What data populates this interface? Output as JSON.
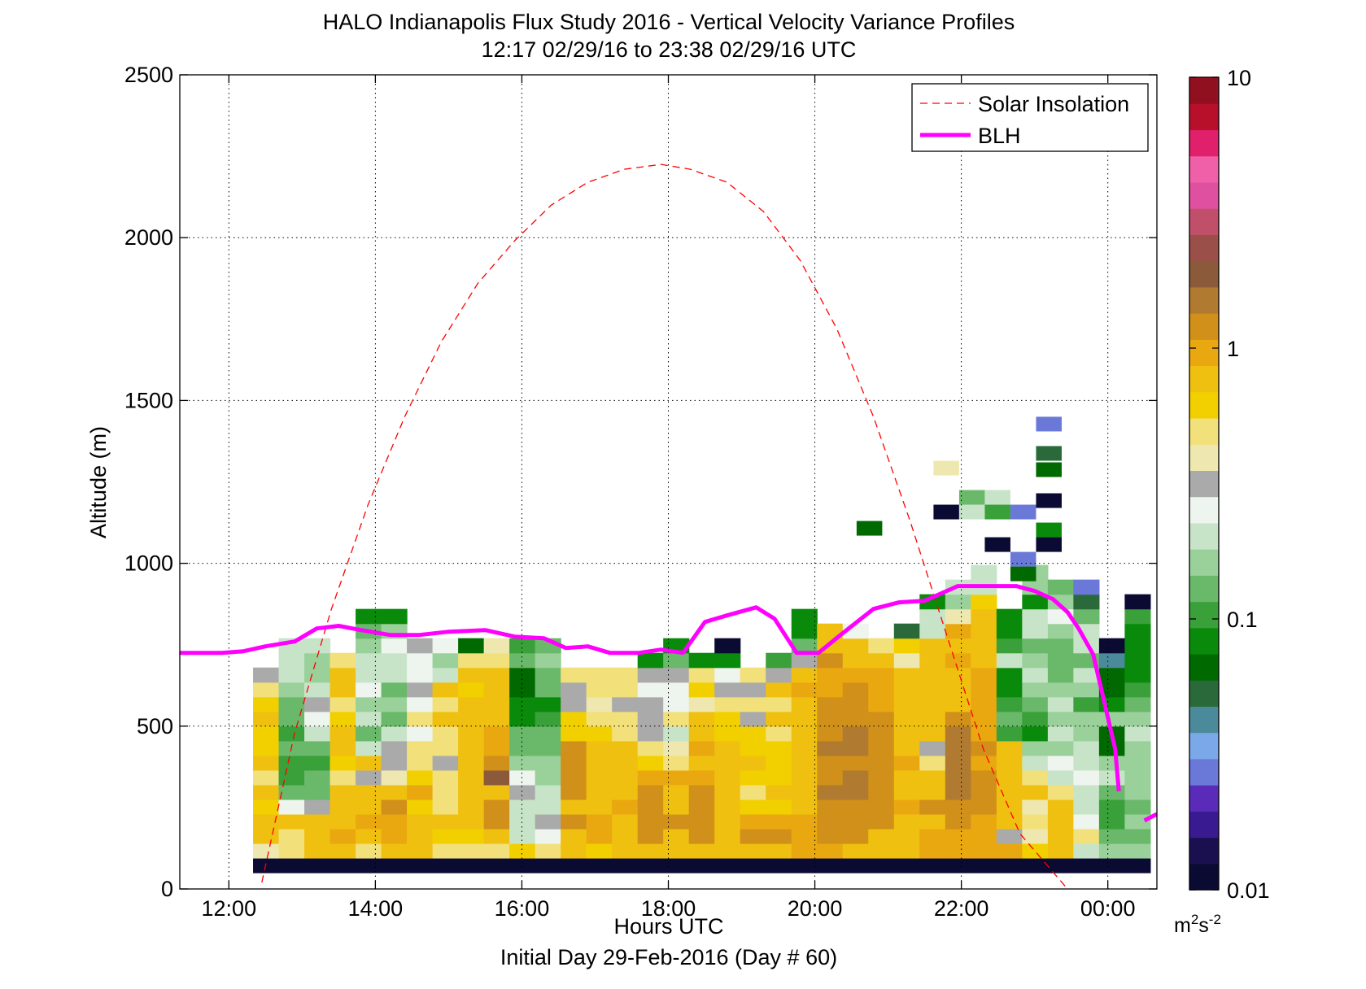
{
  "figure": {
    "title_line1": "HALO Indianapolis Flux Study 2016 - Vertical Velocity Variance Profiles",
    "title_line2": "12:17 02/29/16 to 23:38 02/29/16  UTC",
    "xlabel": "Hours UTC",
    "xlabel2": "Initial Day 29-Feb-2016 (Day # 60)",
    "ylabel": "Altitude (m)",
    "colorbar_unit_base": "m",
    "colorbar_unit_sup1": "2",
    "colorbar_unit_mid": "s",
    "colorbar_unit_sup2": "-2"
  },
  "chart_data": {
    "type": "heatmap",
    "x_unit": "hours UTC",
    "y_unit": "m",
    "xlim": [
      11.33,
      24.67
    ],
    "ylim": [
      0,
      2500
    ],
    "xticks": [
      12,
      14,
      16,
      18,
      20,
      22,
      24
    ],
    "xtick_labels": [
      "12:00",
      "14:00",
      "16:00",
      "18:00",
      "20:00",
      "22:00",
      "00:00"
    ],
    "yticks": [
      0,
      500,
      1000,
      1500,
      2000,
      2500
    ],
    "ytick_labels": [
      "0",
      "500",
      "1000",
      "1500",
      "2000",
      "2500"
    ],
    "grid": true,
    "legend_position": "top-right",
    "legend": [
      "Solar Insolation",
      "BLH"
    ],
    "colorbar": {
      "scale": "log",
      "range": [
        0.01,
        10
      ],
      "ticks": [
        0.01,
        0.1,
        1,
        10
      ],
      "tick_labels": [
        "0.01",
        "0.1",
        "1",
        "10"
      ],
      "colors": [
        "#0a0a33",
        "#1a1050",
        "#3a1a90",
        "#5a2ab8",
        "#6a78d8",
        "#7aa8e8",
        "#4a8a9a",
        "#2a6a3a",
        "#006a00",
        "#0a8a0a",
        "#3aa03a",
        "#6ab86a",
        "#9ad09a",
        "#c8e4c8",
        "#eef4ee",
        "#aaaaaa",
        "#eee8b0",
        "#f2e07a",
        "#f2d000",
        "#f0c010",
        "#eaa810",
        "#d0901a",
        "#b07a30",
        "#8a5a3a",
        "#9a5048",
        "#c0506a",
        "#e050a0",
        "#f060a8",
        "#e0206a",
        "#b8102a",
        "#901020"
      ]
    },
    "series": [
      {
        "name": "Solar Insolation",
        "style": "dashed",
        "color": "#ff0000",
        "x": [
          12.45,
          12.9,
          13.4,
          13.9,
          14.4,
          14.9,
          15.4,
          15.9,
          16.4,
          16.9,
          17.4,
          17.9,
          18.3,
          18.8,
          19.3,
          19.8,
          20.3,
          20.8,
          21.3,
          21.8,
          22.3,
          22.8,
          23.45
        ],
        "y": [
          20,
          480,
          860,
          1180,
          1450,
          1680,
          1860,
          1990,
          2100,
          2170,
          2210,
          2225,
          2210,
          2170,
          2080,
          1930,
          1720,
          1450,
          1130,
          780,
          430,
          170,
          0
        ]
      },
      {
        "name": "BLH",
        "style": "solid",
        "color": "#ff00ff",
        "x": [
          11.33,
          11.6,
          11.9,
          12.2,
          12.5,
          12.9,
          13.2,
          13.5,
          13.8,
          14.2,
          14.6,
          15.0,
          15.5,
          15.9,
          16.3,
          16.6,
          16.9,
          17.2,
          17.6,
          17.9,
          18.2,
          18.5,
          18.8,
          19.2,
          19.45,
          19.75,
          20.05,
          20.35,
          20.8,
          21.15,
          21.5,
          21.95,
          22.45,
          22.75,
          23.0,
          23.25,
          23.45,
          23.6,
          23.8,
          24.1,
          24.15,
          24.5,
          24.67
        ],
        "y": [
          725,
          725,
          725,
          730,
          745,
          760,
          800,
          808,
          795,
          780,
          780,
          790,
          795,
          775,
          770,
          740,
          745,
          725,
          725,
          735,
          725,
          820,
          840,
          865,
          830,
          725,
          725,
          780,
          860,
          880,
          885,
          930,
          930,
          930,
          915,
          890,
          850,
          800,
          720,
          430,
          300,
          210,
          230
        ],
        "gap_after_x": 24.15
      }
    ],
    "heatmap": {
      "x_start": 12.33,
      "dx": 0.35,
      "y_start": 50,
      "dy": 45,
      "note": "columns[i] lists variance values (m^2 s^-2) from the lowest bin upward; null = no return",
      "columns": [
        [
          0.01,
          0.4,
          0.8,
          0.7,
          0.6,
          0.8,
          0.5,
          0.7,
          0.6,
          0.6,
          0.7,
          0.6,
          0.45,
          0.35
        ],
        [
          0.01,
          0.45,
          0.5,
          0.7,
          0.25,
          0.12,
          0.11,
          0.1,
          0.13,
          0.11,
          0.12,
          0.12,
          0.15,
          0.2,
          0.2,
          0.2
        ],
        [
          0.01,
          0.8,
          0.7,
          0.75,
          0.31,
          0.14,
          0.13,
          0.11,
          0.12,
          0.2,
          0.25,
          0.3,
          0.2,
          0.18,
          0.16,
          0.2
        ],
        [
          0.01,
          0.7,
          0.9,
          0.7,
          0.75,
          0.8,
          0.55,
          0.6,
          0.7,
          0.75,
          0.6,
          0.5,
          0.8,
          0.8,
          0.5
        ],
        [
          0.01,
          0.45,
          0.8,
          0.9,
          0.75,
          0.8,
          0.35,
          0.7,
          0.22,
          0.14,
          0.2,
          0.18,
          0.25,
          0.2,
          0.22,
          0.16,
          0.12,
          0.08
        ],
        [
          0.01,
          0.7,
          0.9,
          0.9,
          1.2,
          0.7,
          0.4,
          0.3,
          0.35,
          0.2,
          0.12,
          0.15,
          0.12,
          0.2,
          0.22,
          0.25,
          0.18,
          0.09
        ],
        [
          0.01,
          0.8,
          0.75,
          0.7,
          0.65,
          0.9,
          0.65,
          0.5,
          0.45,
          0.28,
          0.45,
          0.25,
          0.3,
          0.25,
          0.28,
          0.3
        ],
        [
          0.01,
          0.55,
          0.6,
          0.7,
          0.5,
          0.55,
          0.45,
          0.3,
          0.5,
          0.5,
          0.7,
          0.5,
          0.8,
          0.22,
          0.18,
          0.25
        ],
        [
          0.01,
          0.5,
          0.65,
          0.75,
          0.8,
          0.75,
          0.8,
          0.7,
          0.75,
          0.8,
          0.7,
          0.7,
          0.6,
          0.7,
          0.45,
          0.07
        ],
        [
          0.01,
          0.5,
          0.75,
          1.3,
          1.1,
          0.7,
          1.7,
          1.1,
          0.9,
          0.9,
          0.7,
          0.8,
          0.8,
          0.75,
          0.5,
          0.4
        ],
        [
          0.01,
          0.6,
          0.22,
          0.21,
          0.2,
          0.3,
          0.25,
          0.15,
          0.14,
          0.12,
          0.09,
          0.08,
          0.06,
          0.07,
          0.13,
          0.1
        ],
        [
          0.01,
          0.55,
          0.28,
          0.3,
          0.2,
          0.2,
          0.17,
          0.15,
          0.13,
          0.12,
          0.1,
          0.08,
          0.12,
          0.12,
          0.15,
          0.14
        ],
        [
          0.01,
          0.7,
          0.8,
          1.2,
          0.8,
          1.3,
          1.2,
          1.1,
          1.2,
          0.6,
          0.6,
          0.3,
          0.35,
          0.5
        ],
        [
          0.01,
          0.6,
          0.9,
          0.9,
          0.7,
          0.8,
          0.8,
          0.7,
          0.8,
          0.6,
          0.5,
          0.4,
          0.45,
          0.5
        ],
        [
          0.01,
          0.7,
          0.75,
          0.8,
          0.9,
          0.8,
          0.8,
          0.7,
          0.7,
          0.55,
          0.5,
          0.32,
          0.55,
          0.5
        ],
        [
          0.01,
          0.8,
          1.3,
          1.1,
          1.2,
          1.3,
          0.9,
          0.6,
          0.5,
          0.31,
          0.31,
          0.3,
          0.28,
          0.3,
          0.09
        ],
        [
          0.01,
          0.7,
          0.8,
          1.1,
          0.8,
          0.75,
          0.9,
          0.5,
          0.4,
          0.2,
          0.45,
          0.25,
          0.25,
          0.3,
          0.12,
          0.08
        ],
        [
          0.01,
          0.8,
          1.2,
          1.2,
          1.1,
          1.2,
          0.9,
          0.8,
          0.9,
          0.8,
          0.7,
          0.4,
          0.6,
          0.45,
          0.09
        ],
        [
          0.01,
          0.75,
          0.7,
          0.75,
          0.8,
          0.7,
          0.8,
          0.75,
          0.7,
          0.6,
          0.65,
          0.5,
          0.35,
          0.25,
          0.08,
          0.01
        ],
        [
          0.01,
          0.7,
          1.1,
          0.9,
          0.6,
          0.5,
          0.6,
          0.7,
          0.6,
          0.6,
          0.31,
          0.5,
          0.35,
          0.5
        ],
        [
          0.01,
          0.8,
          1.1,
          0.9,
          0.6,
          0.7,
          0.6,
          0.6,
          0.6,
          0.5,
          0.75,
          0.45,
          0.75,
          0.31,
          0.1
        ],
        [
          0.01,
          0.9,
          0.9,
          0.9,
          0.8,
          0.7,
          0.7,
          0.7,
          0.8,
          0.7,
          0.8,
          0.8,
          0.9,
          0.8,
          0.3,
          0.14,
          0.09,
          0.08
        ],
        [
          0.01,
          0.9,
          1.2,
          1.3,
          1.2,
          1.4,
          1.2,
          1.3,
          1.4,
          1.3,
          1.1,
          1.2,
          1.0,
          1.0,
          1.1,
          0.8,
          0.7
        ],
        [
          0.01,
          0.8,
          1.3,
          1.2,
          1.3,
          1.6,
          1.4,
          1.3,
          1.6,
          1.4,
          1.2,
          1.2,
          1.1,
          1.0,
          0.75,
          0.8,
          0.25
        ],
        [
          0.01,
          0.8,
          0.8,
          1.2,
          1.1,
          1.2,
          1.3,
          1.2,
          1.3,
          1.2,
          1.1,
          1.0,
          1.0,
          0.9,
          0.7,
          0.5
        ],
        [
          0.01,
          0.8,
          0.8,
          0.8,
          0.9,
          0.8,
          0.7,
          0.9,
          0.8,
          0.8,
          0.8,
          0.7,
          0.8,
          0.8,
          0.4,
          0.6,
          0.05
        ],
        [
          0.01,
          0.9,
          1.0,
          0.8,
          1.1,
          0.7,
          0.8,
          0.5,
          0.3,
          0.7,
          0.8,
          0.7,
          0.8,
          0.7,
          0.8,
          0.7,
          0.2,
          0.2,
          0.08
        ],
        [
          0.01,
          0.9,
          1.0,
          1.1,
          1.3,
          1.6,
          1.6,
          1.4,
          1.6,
          1.4,
          1.2,
          0.8,
          0.8,
          0.8,
          0.9,
          0.7,
          0.9,
          0.4,
          0.15,
          0.2
        ],
        [
          0.01,
          0.9,
          1.0,
          0.9,
          1.2,
          1.1,
          1.1,
          1.0,
          1.1,
          1.0,
          0.9,
          1.0,
          0.9,
          0.9,
          0.8,
          0.75,
          0.8,
          0.7,
          0.6,
          0.22,
          0.2
        ],
        [
          0.01,
          0.9,
          0.33,
          0.7,
          0.8,
          0.7,
          0.8,
          0.75,
          0.7,
          0.1,
          0.12,
          0.1,
          0.09,
          0.08,
          0.2,
          0.1,
          0.08,
          0.09
        ],
        [
          0.01,
          0.6,
          0.4,
          0.5,
          0.4,
          0.7,
          0.45,
          0.2,
          0.15,
          0.08,
          0.1,
          0.12,
          0.16,
          0.2,
          0.18,
          0.14,
          0.2,
          0.2,
          0.08,
          0.15,
          0.17
        ],
        [
          0.01,
          0.8,
          0.8,
          0.7,
          0.75,
          0.45,
          0.21,
          0.23,
          0.18,
          0.2,
          0.15,
          0.2,
          0.18,
          0.13,
          0.12,
          0.12,
          0.15,
          0.23,
          0.15,
          0.13
        ],
        [
          0.01,
          0.21,
          0.45,
          0.28,
          0.22,
          0.21,
          0.23,
          0.21,
          0.2,
          0.18,
          0.15,
          0.1,
          0.17,
          0.2,
          0.13,
          0.21,
          0.19,
          0.13,
          0.05,
          0.03
        ],
        [
          0.01,
          0.15,
          0.13,
          0.1,
          0.11,
          0.14,
          0.2,
          0.15,
          0.07,
          0.07,
          0.15,
          0.08,
          0.07,
          0.06,
          0.04,
          0.01
        ],
        [
          0.01,
          0.15,
          0.12,
          0.15,
          0.12,
          0.18,
          0.18,
          0.15,
          0.18,
          0.2,
          0.15,
          0.14,
          0.1,
          0.09,
          0.08,
          0.08,
          0.09,
          0.1,
          0.01
        ]
      ],
      "sparse_cells": [
        {
          "x": 20.57,
          "y": 1085,
          "v": 0.07
        },
        {
          "x": 21.62,
          "y": 1270,
          "v": 0.4
        },
        {
          "x": 21.62,
          "y": 1135,
          "v": 0.01
        },
        {
          "x": 21.97,
          "y": 1180,
          "v": 0.14
        },
        {
          "x": 21.97,
          "y": 1135,
          "v": 0.22
        },
        {
          "x": 22.32,
          "y": 1180,
          "v": 0.2
        },
        {
          "x": 22.32,
          "y": 1135,
          "v": 0.11
        },
        {
          "x": 22.32,
          "y": 1035,
          "v": 0.01
        },
        {
          "x": 22.67,
          "y": 1135,
          "v": 0.03
        },
        {
          "x": 22.67,
          "y": 990,
          "v": 0.03
        },
        {
          "x": 22.67,
          "y": 945,
          "v": 0.06
        },
        {
          "x": 23.02,
          "y": 1405,
          "v": 0.03
        },
        {
          "x": 23.02,
          "y": 1315,
          "v": 0.05
        },
        {
          "x": 23.02,
          "y": 1265,
          "v": 0.07
        },
        {
          "x": 23.02,
          "y": 1170,
          "v": 0.01
        },
        {
          "x": 23.02,
          "y": 1080,
          "v": 0.09
        },
        {
          "x": 23.02,
          "y": 1035,
          "v": 0.01
        }
      ]
    }
  }
}
